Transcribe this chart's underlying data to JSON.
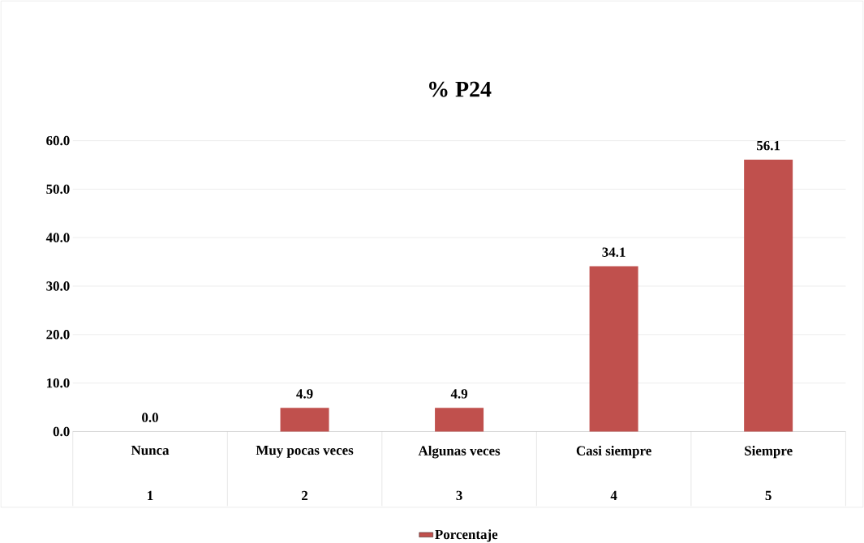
{
  "chart_data": {
    "type": "bar",
    "title": "% P24",
    "categories": [
      "Nunca",
      "Muy pocas veces",
      "Algunas veces",
      "Casi siempre",
      "Siempre"
    ],
    "series": [
      {
        "name": "Porcentaje",
        "color": "#c0504d",
        "values": [
          0.0,
          4.9,
          4.9,
          34.1,
          56.1
        ],
        "value_labels": [
          "0.0",
          "4.9",
          "4.9",
          "34.1",
          "56.1"
        ]
      }
    ],
    "annotations": [
      "1",
      "2",
      "3",
      "4",
      "5"
    ],
    "ylim": [
      0,
      60
    ],
    "yticks": [
      {
        "value": 0,
        "label": "0.0"
      },
      {
        "value": 10,
        "label": "10.0"
      },
      {
        "value": 20,
        "label": "20.0"
      },
      {
        "value": 30,
        "label": "30.0"
      },
      {
        "value": 40,
        "label": "40.0"
      },
      {
        "value": 50,
        "label": "50.0"
      },
      {
        "value": 60,
        "label": "60.0"
      }
    ],
    "grid": "y",
    "legend": "bottom"
  }
}
